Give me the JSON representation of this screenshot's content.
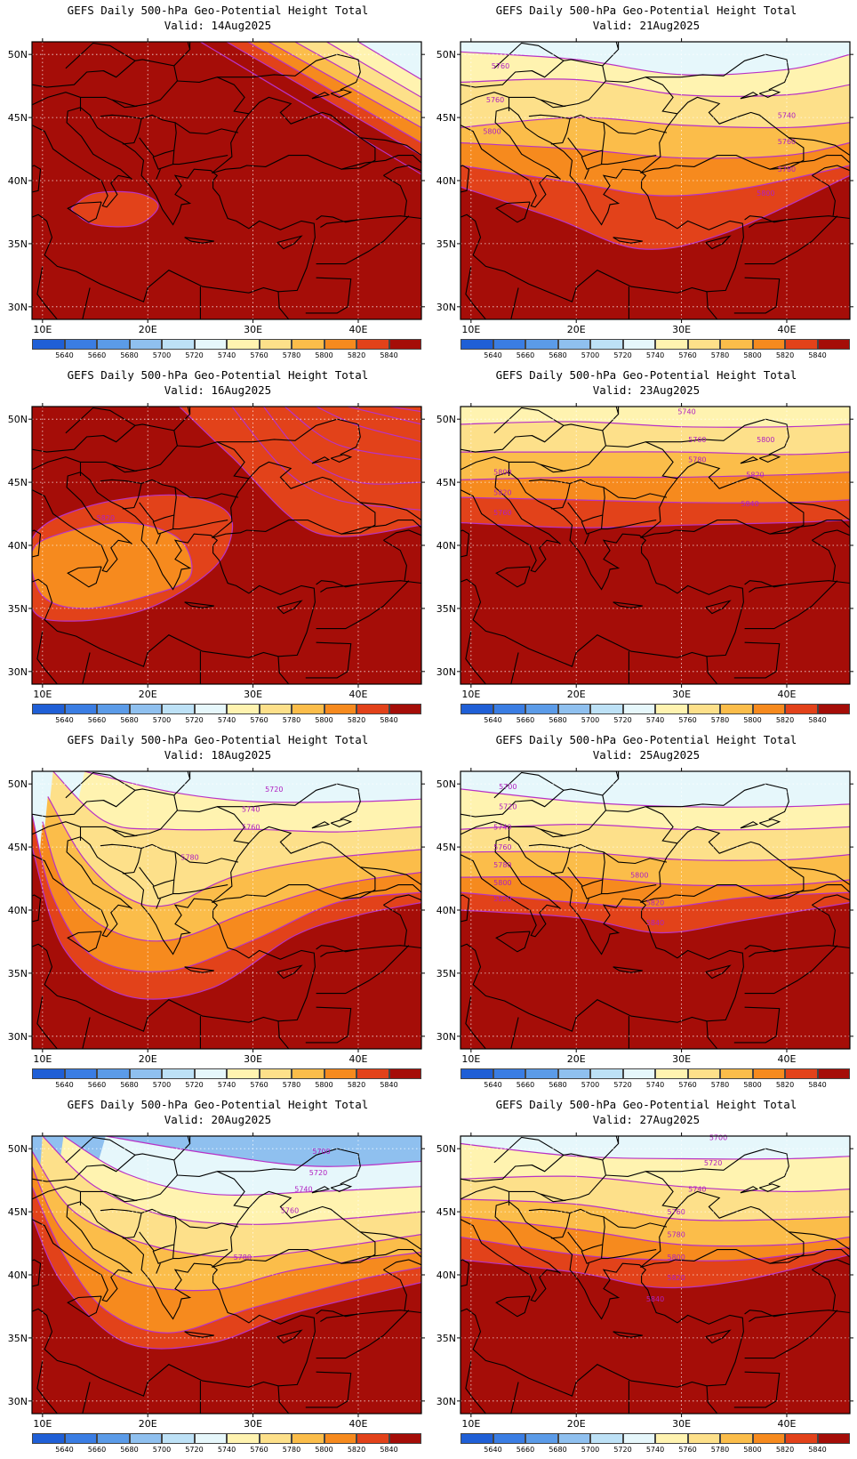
{
  "map_title": "GEFS Daily 500-hPa Geo-Potential Height Total",
  "valid_prefix": "Valid: ",
  "lat_labels": [
    "50N",
    "45N",
    "40N",
    "35N",
    "30N"
  ],
  "lon_labels": [
    "10E",
    "20E",
    "30E",
    "40E"
  ],
  "colorbar": {
    "labels": [
      "5640",
      "5660",
      "5680",
      "5700",
      "5720",
      "5740",
      "5760",
      "5780",
      "5800",
      "5820",
      "5840"
    ],
    "colors": [
      "#1f5fd6",
      "#3a7de3",
      "#5b9be8",
      "#8fc0ef",
      "#bde1f6",
      "#e6f7fb",
      "#fff3b0",
      "#fde08a",
      "#fbbd4a",
      "#f68a1e",
      "#e2421a",
      "#a50d08"
    ]
  },
  "contour_color": "#b832c6",
  "panels": [
    {
      "valid": "14Aug2025",
      "labels": []
    },
    {
      "valid": "21Aug2025",
      "labels": [
        "5760",
        "5760",
        "5800",
        "5740",
        "5760",
        "5780",
        "5800"
      ]
    },
    {
      "valid": "16Aug2025",
      "labels": [
        "5820"
      ]
    },
    {
      "valid": "23Aug2025",
      "labels": [
        "5740",
        "5760",
        "5780",
        "5800",
        "5820",
        "5760",
        "5800",
        "5820",
        "5840"
      ]
    },
    {
      "valid": "18Aug2025",
      "labels": [
        "5720",
        "5740",
        "5760",
        "5780"
      ]
    },
    {
      "valid": "25Aug2025",
      "labels": [
        "5700",
        "5720",
        "5740",
        "5760",
        "5780",
        "5800",
        "5820",
        "5800",
        "5820",
        "5840"
      ]
    },
    {
      "valid": "20Aug2025",
      "labels": [
        "5700",
        "5720",
        "5740",
        "5760",
        "5780"
      ]
    },
    {
      "valid": "27Aug2025",
      "labels": [
        "5700",
        "5720",
        "5740",
        "5760",
        "5780",
        "5800",
        "5820",
        "5840"
      ]
    }
  ]
}
